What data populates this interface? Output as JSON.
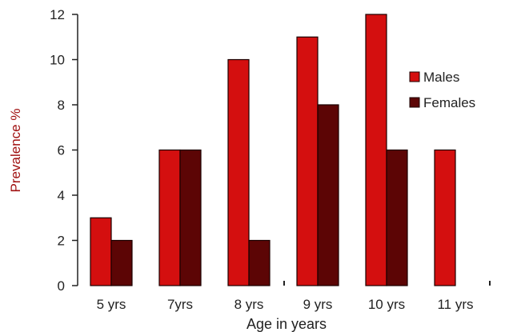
{
  "chart_data": {
    "type": "bar",
    "categories": [
      "5 yrs",
      "7yrs",
      "8 yrs",
      "9 yrs",
      "10 yrs",
      "11 yrs"
    ],
    "series": [
      {
        "name": "Males",
        "values": [
          3,
          6,
          10,
          11,
          12,
          6
        ],
        "color": "#d40f0f"
      },
      {
        "name": "Females",
        "values": [
          2,
          6,
          2,
          8,
          6,
          0
        ],
        "color": "#5c0505"
      }
    ],
    "xlabel": "Age in years",
    "ylabel": "Prevalence %",
    "ylim": [
      0,
      12
    ],
    "yticks": [
      "0",
      "2",
      "4",
      "6",
      "8",
      "10",
      "12"
    ],
    "grid": false,
    "legend_position": "right"
  }
}
